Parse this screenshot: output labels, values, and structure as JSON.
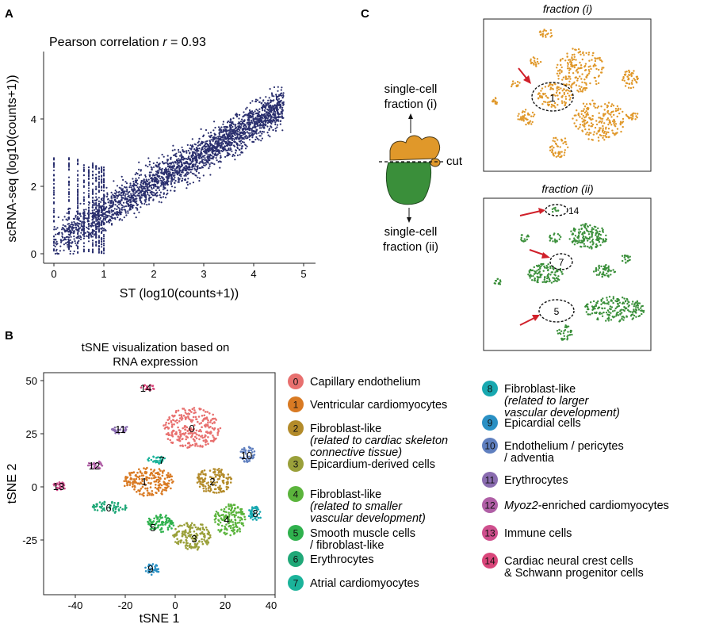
{
  "panel_labels": {
    "a": "A",
    "b": "B",
    "c": "C"
  },
  "panel_a": {
    "annotation_prefix": "Pearson correlation ",
    "annotation_r": "r",
    "annotation_suffix": " = 0.93",
    "xlabel": "ST (log10(counts+1))",
    "ylabel": "scRNA-seq (log10(counts+1))",
    "xticks": [
      "0",
      "1",
      "2",
      "3",
      "4",
      "5"
    ],
    "yticks": [
      "0",
      "2",
      "4"
    ],
    "point_color": "#2a2f6e"
  },
  "panel_b": {
    "title_line1": "tSNE visualization based on",
    "title_line2": "RNA expression",
    "xlabel": "tSNE 1",
    "ylabel": "tSNE 2",
    "xticks": [
      "-40",
      "-20",
      "0",
      "20",
      "40"
    ],
    "yticks": [
      "50",
      "25",
      "0",
      "-25"
    ],
    "clusters": [
      {
        "id": "0",
        "color": "#e8706f",
        "line1": "Capillary endothelium"
      },
      {
        "id": "1",
        "color": "#d97a23",
        "line1": "Ventricular cardiomyocytes"
      },
      {
        "id": "2",
        "color": "#b38b2a",
        "line1": "Fibroblast-like",
        "line2": "(related to cardiac skeleton",
        "line3": "connective tissue)"
      },
      {
        "id": "3",
        "color": "#9aa03a",
        "line1": "Epicardium-derived cells"
      },
      {
        "id": "4",
        "color": "#5bb43c",
        "line1": "Fibroblast-like",
        "line2": "(related to smaller",
        "line3": "vascular development)"
      },
      {
        "id": "5",
        "color": "#2fb14d",
        "line1": "Smooth muscle cells",
        "line2": "/ fibroblast-like"
      },
      {
        "id": "6",
        "color": "#20a878",
        "line1": "Erythrocytes"
      },
      {
        "id": "7",
        "color": "#1bb39a",
        "line1": "Atrial cardiomyocytes"
      },
      {
        "id": "8",
        "color": "#18a8b0",
        "line1": "Fibroblast-like",
        "line2": "(related to larger",
        "line3": "vascular development)"
      },
      {
        "id": "9",
        "color": "#2a90c4",
        "line1": "Epicardial cells"
      },
      {
        "id": "10",
        "color": "#5f7fbf",
        "line1": "Endothelium / pericytes",
        "line2": "/ adventia"
      },
      {
        "id": "11",
        "color": "#8a6cb0",
        "line1": "Erythrocytes"
      },
      {
        "id": "12",
        "color": "#b05fa6",
        "line1": "Myoz2",
        "line1b": "-enriched cardiomyocytes"
      },
      {
        "id": "13",
        "color": "#cf4f8d",
        "line1": "Immune cells"
      },
      {
        "id": "14",
        "color": "#d9467a",
        "line1": "Cardiac neural crest cells",
        "line2": "& Schwann progenitor cells"
      }
    ]
  },
  "panel_c": {
    "upper_label_line1": "single-cell",
    "upper_label_line2": "fraction (i)",
    "lower_label_line1": "single-cell",
    "lower_label_line2": "fraction (ii)",
    "cut_label": "cut",
    "top_title": "fraction (i)",
    "bottom_title": "fraction (ii)",
    "top_cluster_labels": [
      "1"
    ],
    "bottom_cluster_labels": [
      "14",
      "7",
      "5"
    ],
    "orange": "#e0982a",
    "green": "#3a8f3a",
    "arrow_red": "#d0202a"
  }
}
